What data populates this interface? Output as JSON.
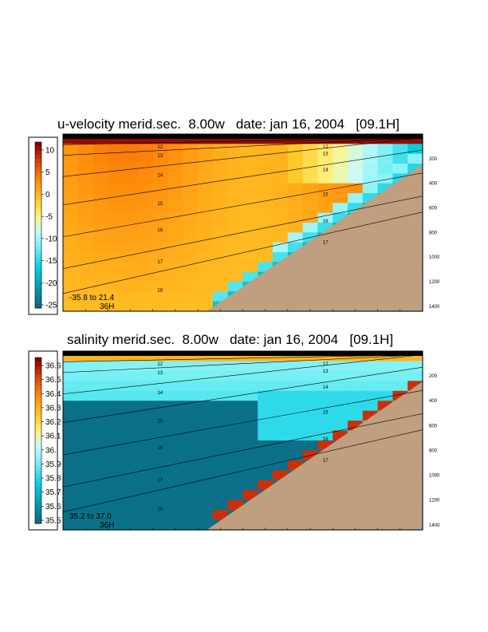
{
  "chart_data": [
    {
      "type": "heatmap",
      "title": "u-velocity merid.sec.  8.00w   date: jan 16, 2004   [09.1H]",
      "colorbar": {
        "ticks": [
          "10",
          "5",
          "0",
          "-5",
          "-10",
          "-15",
          "-20",
          "-25"
        ],
        "range": [
          -28,
          12.5
        ]
      },
      "range_label": "-35.8 to  21.4",
      "range_sublabel": "36H",
      "depth_ticks": [
        "200",
        "400",
        "600",
        "800",
        "1000",
        "1200",
        "1400"
      ],
      "contour_labels": [
        "12",
        "13",
        "14",
        "15",
        "16",
        "17",
        "18",
        "12",
        "13",
        "14",
        "15",
        "16",
        "17"
      ]
    },
    {
      "type": "heatmap",
      "title": "salinity merid.sec.  8.00w   date: jan 16, 2004   [09.1H]",
      "colorbar": {
        "ticks": [
          "36.6",
          "36.5",
          "36.4",
          "36.3",
          "36.2",
          "36.1",
          "36.",
          "35.9",
          "35.8",
          "35.7",
          "35.6",
          "35.5"
        ],
        "range": [
          35.45,
          36.7
        ]
      },
      "range_label": "35.2 to  37.0",
      "range_sublabel": "36H",
      "depth_ticks": [
        "200",
        "400",
        "600",
        "800",
        "1000",
        "1200",
        "1400"
      ],
      "contour_labels": [
        "12",
        "13",
        "14",
        "15",
        "16",
        "17",
        "18",
        "12",
        "13",
        "14",
        "15",
        "16",
        "17"
      ]
    }
  ]
}
